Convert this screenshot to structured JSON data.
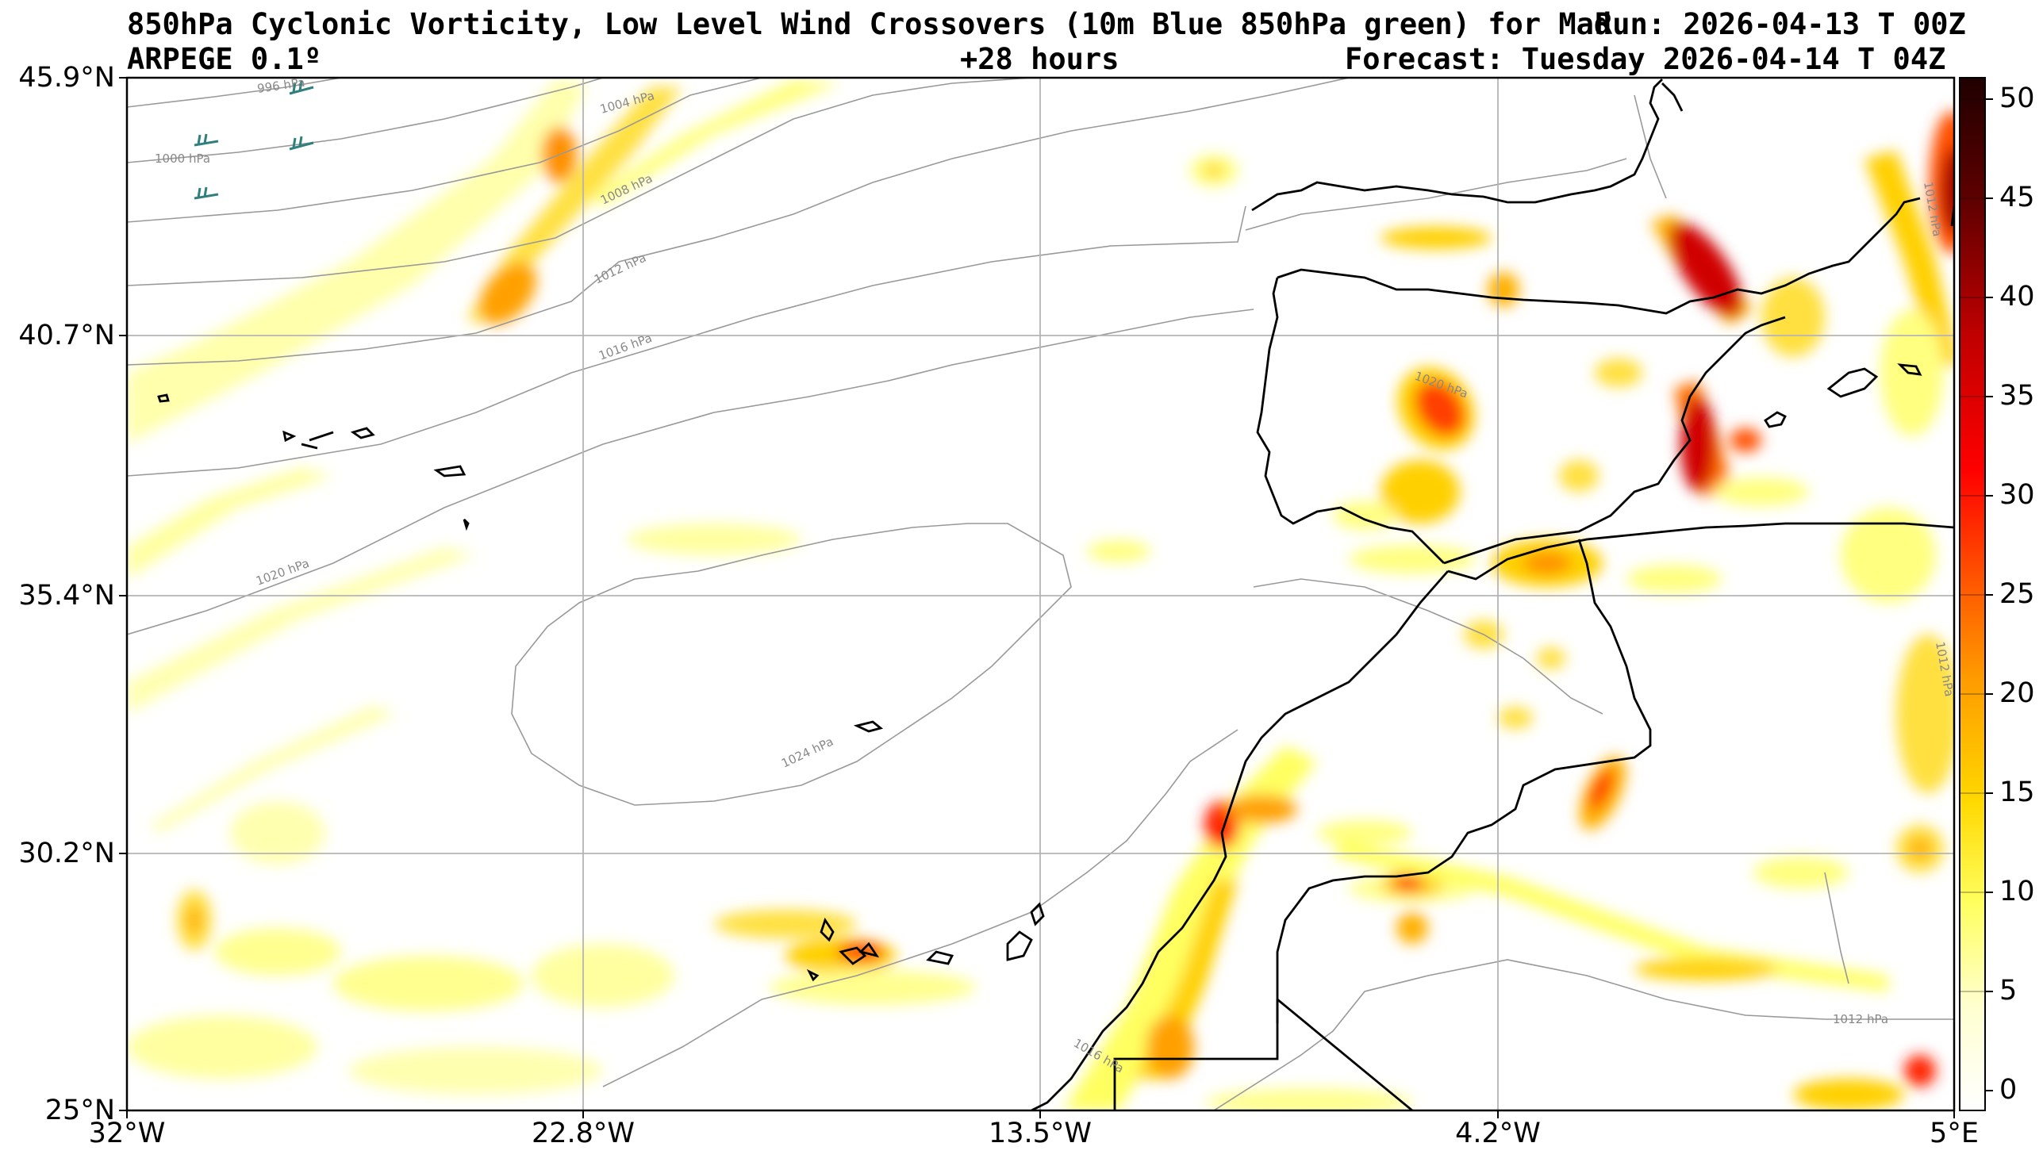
{
  "header": {
    "title_line": "850hPa Cyclonic Vorticity, Low Level Wind Crossovers (10m Blue 850hPa green) for Mad",
    "run_overlap": "Run: 2026-04-13 T 00Z",
    "model": "ARPEGE 0.1º",
    "lead_time": "+28 hours",
    "forecast": "Forecast: Tuesday 2026-04-14 T 04Z"
  },
  "map": {
    "lat_ticks": [
      "45.9°N",
      "40.7°N",
      "35.4°N",
      "30.2°N",
      "25°N"
    ],
    "lon_ticks": [
      "32°W",
      "22.8°W",
      "13.5°W",
      "4.2°W",
      "5°E"
    ],
    "isobar_labels": [
      "996 hPa",
      "1000 hPa",
      "1004 hPa",
      "1008 hPa",
      "1012 hPa",
      "1016 hPa",
      "1020 hPa",
      "1020 hPa",
      "1024 hPa",
      "1016 hPa",
      "1012 hPa",
      "1012 hPa",
      "1012 hPa"
    ]
  },
  "colorbar": {
    "ticks": [
      "50",
      "45",
      "40",
      "35",
      "30",
      "25",
      "20",
      "15",
      "10",
      "5",
      "0"
    ],
    "colors": [
      "#ffffd0",
      "#ffff80",
      "#ffe040",
      "#ffb000",
      "#ff7000",
      "#ff2000",
      "#d00000",
      "#900000",
      "#500000",
      "#200000"
    ]
  },
  "colors": {
    "isobar": "#999999",
    "grid": "#b4b4b4",
    "coast": "#000000"
  }
}
